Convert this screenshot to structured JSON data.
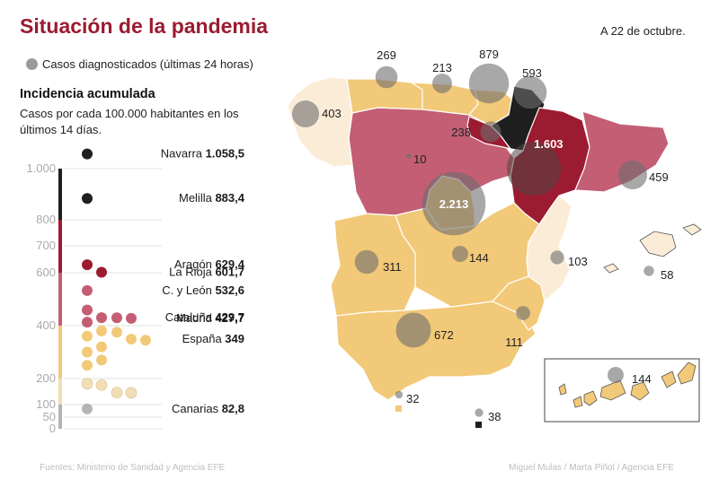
{
  "title": "Situación de la pandemia",
  "date": "A 22 de octubre.",
  "legend": {
    "label": "Casos diagnosticados (últimas 24 horas)",
    "marker_color": "#9a9a9a"
  },
  "incidence": {
    "title": "Incidencia acumulada",
    "subtitle": "Casos por cada 100.000 habitantes en los últimos 14 días."
  },
  "chart_data": {
    "type": "scatter",
    "ylim": [
      0,
      1000
    ],
    "ticks": [
      "0",
      "50",
      "100",
      "200",
      "400",
      "600",
      "700",
      "800",
      "1.000"
    ],
    "tick_values": [
      0,
      50,
      100,
      200,
      400,
      600,
      700,
      800,
      1000
    ],
    "band_colors": [
      "#b4b4b4",
      "#f2deb6",
      "#f2c978",
      "#c35e74",
      "#9b1b30",
      "#1f1f1f"
    ],
    "labels": [
      {
        "name": "Navarra",
        "value": "1.058,5",
        "v": 1058.5
      },
      {
        "name": "Melilla",
        "value": "883,4",
        "v": 883.4
      },
      {
        "name": "Aragón",
        "value": "629,4",
        "v": 629.4
      },
      {
        "name": "La Rioja",
        "value": "601,7",
        "v": 601.7
      },
      {
        "name": "C. y León",
        "value": "532,6",
        "v": 532.6
      },
      {
        "name": "Cataluña",
        "value": "429,7",
        "v": 429.7
      },
      {
        "name": "Madrid",
        "value": "427,7",
        "v": 427.7
      },
      {
        "name": "España",
        "value": "349",
        "v": 349
      },
      {
        "name": "Canarias",
        "value": "82,8",
        "v": 82.8
      }
    ],
    "points": [
      {
        "v": 1058.5,
        "color": "#1f1f1f"
      },
      {
        "v": 883.4,
        "color": "#1f1f1f"
      },
      {
        "v": 629.4,
        "color": "#9b1b30"
      },
      {
        "v": 601.7,
        "color": "#9b1b30"
      },
      {
        "v": 532.6,
        "color": "#c35e74"
      },
      {
        "v": 459,
        "color": "#c35e74"
      },
      {
        "v": 430,
        "color": "#c35e74"
      },
      {
        "v": 429.7,
        "color": "#c35e74"
      },
      {
        "v": 427.7,
        "color": "#c35e74"
      },
      {
        "v": 413,
        "color": "#c35e74"
      },
      {
        "v": 380,
        "color": "#f2c978"
      },
      {
        "v": 375,
        "color": "#f2c978"
      },
      {
        "v": 360,
        "color": "#f2c978"
      },
      {
        "v": 349,
        "color": "#f2c978"
      },
      {
        "v": 345,
        "color": "#f2c978"
      },
      {
        "v": 320,
        "color": "#f2c978"
      },
      {
        "v": 300,
        "color": "#f2c978"
      },
      {
        "v": 270,
        "color": "#f2c978"
      },
      {
        "v": 250,
        "color": "#f2c978"
      },
      {
        "v": 180,
        "color": "#f2deb6"
      },
      {
        "v": 175,
        "color": "#f2deb6"
      },
      {
        "v": 146,
        "color": "#f2deb6"
      },
      {
        "v": 145,
        "color": "#f2deb6"
      },
      {
        "v": 82.8,
        "color": "#b4b4b4"
      }
    ]
  },
  "map": {
    "colors": {
      "dark": "#1f1f1f",
      "red": "#9b1b30",
      "pink": "#c35e74",
      "orange": "#f2c978",
      "cream": "#fbecd8",
      "gray": "#9a9a9a"
    },
    "bubbles": [
      {
        "id": "galicia",
        "label": "403",
        "cases": 403
      },
      {
        "id": "asturias",
        "label": "269",
        "cases": 269
      },
      {
        "id": "cantabria",
        "label": "213",
        "cases": 213
      },
      {
        "id": "pais-vasco",
        "label": "879",
        "cases": 879
      },
      {
        "id": "navarra",
        "label": "593",
        "cases": 593
      },
      {
        "id": "la-rioja",
        "label": "238",
        "cases": 238
      },
      {
        "id": "castilla-leon",
        "label": "10",
        "cases": 10
      },
      {
        "id": "aragon",
        "label": "1.603",
        "cases": 1603
      },
      {
        "id": "cataluna",
        "label": "459",
        "cases": 459
      },
      {
        "id": "madrid",
        "label": "2.213",
        "cases": 2213
      },
      {
        "id": "extremadura",
        "label": "311",
        "cases": 311
      },
      {
        "id": "castilla-la-mancha",
        "label": "144",
        "cases": 144
      },
      {
        "id": "valencia",
        "label": "103",
        "cases": 103
      },
      {
        "id": "baleares",
        "label": "58",
        "cases": 58
      },
      {
        "id": "murcia",
        "label": "111",
        "cases": 111
      },
      {
        "id": "andalucia",
        "label": "672",
        "cases": 672
      },
      {
        "id": "canarias",
        "label": "144",
        "cases": 144
      },
      {
        "id": "ceuta",
        "label": "32",
        "cases": 32
      },
      {
        "id": "melilla",
        "label": "38",
        "cases": 38
      }
    ]
  },
  "footer": {
    "source": "Fuentes: Ministerio de Sanidad y Agencia EFE",
    "credit": "Miguel Mulas / Marta Piñol / Agencia EFE"
  }
}
